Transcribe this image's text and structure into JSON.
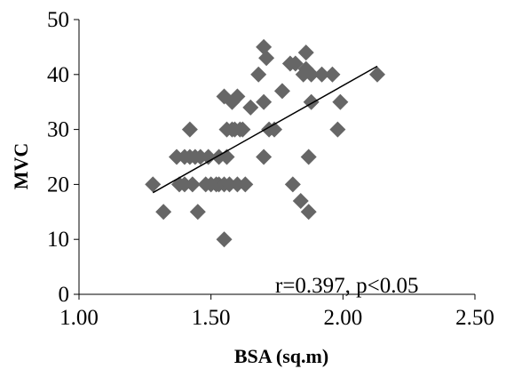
{
  "chart_data": {
    "type": "scatter",
    "title": "",
    "xlabel": "BSA (sq.m)",
    "ylabel": "MVC",
    "xlim": [
      1.0,
      2.5
    ],
    "ylim": [
      0,
      50
    ],
    "x_ticks": [
      "1.00",
      "1.50",
      "2.00",
      "2.50"
    ],
    "y_ticks": [
      "0",
      "10",
      "20",
      "30",
      "40",
      "50"
    ],
    "grid": false,
    "marker": "diamond",
    "marker_color": "#666666",
    "series": [
      {
        "points": [
          [
            1.28,
            20
          ],
          [
            1.32,
            15
          ],
          [
            1.37,
            25
          ],
          [
            1.38,
            20
          ],
          [
            1.4,
            20
          ],
          [
            1.4,
            25
          ],
          [
            1.42,
            30
          ],
          [
            1.42,
            25
          ],
          [
            1.43,
            20
          ],
          [
            1.44,
            25
          ],
          [
            1.45,
            15
          ],
          [
            1.46,
            25
          ],
          [
            1.48,
            20
          ],
          [
            1.49,
            25
          ],
          [
            1.5,
            20
          ],
          [
            1.52,
            20
          ],
          [
            1.53,
            25
          ],
          [
            1.53,
            20
          ],
          [
            1.55,
            20
          ],
          [
            1.55,
            10
          ],
          [
            1.55,
            36
          ],
          [
            1.56,
            30
          ],
          [
            1.56,
            25
          ],
          [
            1.57,
            20
          ],
          [
            1.58,
            35
          ],
          [
            1.58,
            30
          ],
          [
            1.59,
            30
          ],
          [
            1.6,
            36
          ],
          [
            1.6,
            20
          ],
          [
            1.61,
            30
          ],
          [
            1.62,
            30
          ],
          [
            1.63,
            20
          ],
          [
            1.65,
            34
          ],
          [
            1.68,
            40
          ],
          [
            1.7,
            45
          ],
          [
            1.7,
            35
          ],
          [
            1.7,
            25
          ],
          [
            1.71,
            43
          ],
          [
            1.72,
            30
          ],
          [
            1.74,
            30
          ],
          [
            1.77,
            37
          ],
          [
            1.8,
            42
          ],
          [
            1.81,
            20
          ],
          [
            1.82,
            42
          ],
          [
            1.84,
            17
          ],
          [
            1.85,
            40
          ],
          [
            1.86,
            44
          ],
          [
            1.86,
            41
          ],
          [
            1.87,
            15
          ],
          [
            1.87,
            25
          ],
          [
            1.88,
            40
          ],
          [
            1.88,
            35
          ],
          [
            1.92,
            40
          ],
          [
            1.96,
            40
          ],
          [
            1.98,
            30
          ],
          [
            1.99,
            35
          ],
          [
            2.13,
            40
          ]
        ]
      }
    ],
    "trendline": {
      "x": [
        1.28,
        2.13
      ],
      "y": [
        18.5,
        41.5
      ]
    },
    "annotation": "r=0.397, p<0.05"
  }
}
